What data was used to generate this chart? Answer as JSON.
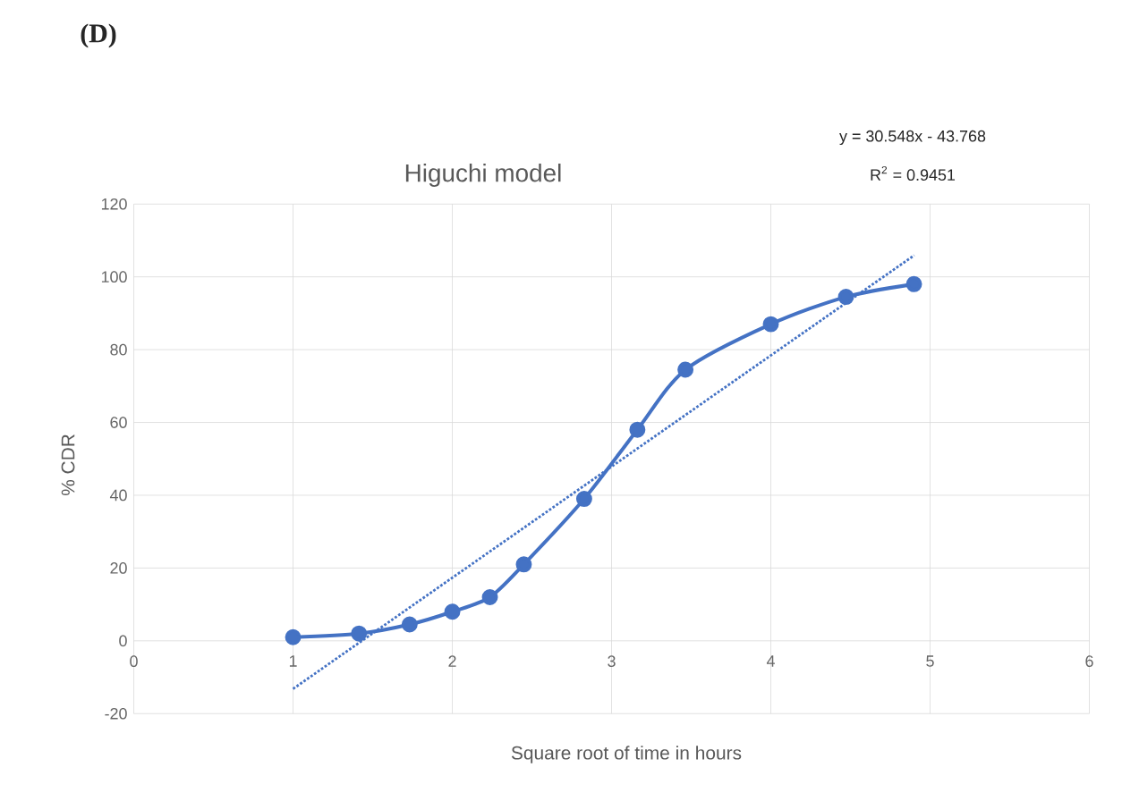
{
  "chart_data": {
    "type": "line",
    "title": "Higuchi model",
    "xlabel": "Square root of time in hours",
    "ylabel": "% CDR",
    "annotations": [
      "(D)",
      "y = 30.548x - 43.768",
      "R$^{2}$ = 0.9451"
    ],
    "series": [
      {
        "color": "#4472c4",
        "marker": "circle",
        "line_style": "solid",
        "x": [
          1,
          1.414,
          1.732,
          2,
          2.236,
          2.449,
          2.828,
          3.162,
          3.464,
          4,
          4.472,
          4.899
        ],
        "values": [
          1,
          2,
          4.5,
          8,
          12,
          21,
          39,
          58,
          74.5,
          87,
          94.5,
          98
        ]
      },
      {
        "color": "#4472c4",
        "marker": "none",
        "line_style": "dotted",
        "x": [
          1,
          4.9
        ],
        "values": [
          -13.2,
          105.9
        ]
      }
    ],
    "xlim": [
      0,
      6
    ],
    "xticks": [
      0,
      1,
      2,
      3,
      4,
      5,
      6
    ],
    "ylim": [
      -20,
      120
    ],
    "yticks": [
      -20,
      0,
      20,
      40,
      60,
      80,
      100,
      120
    ],
    "grid": true
  }
}
